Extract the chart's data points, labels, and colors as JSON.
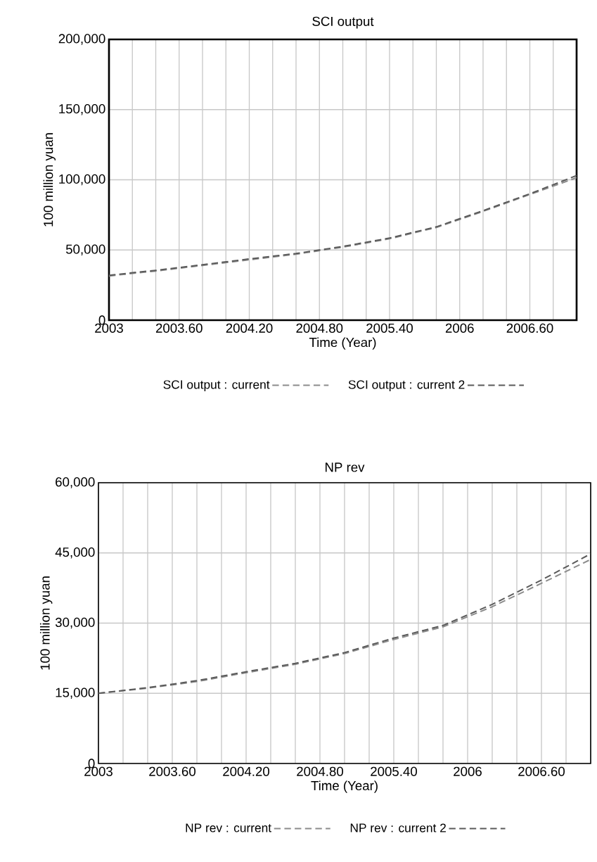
{
  "chart_data": [
    {
      "type": "line",
      "title": "SCI output",
      "xlabel": "Time (Year)",
      "ylabel": "100 million yuan",
      "xlim": [
        2003,
        2007
      ],
      "ylim": [
        0,
        200000
      ],
      "xticks": [
        2003,
        {
          "value": 2003.2,
          "label": null
        },
        {
          "value": 2003.4,
          "label": null
        },
        {
          "value": 2003.6,
          "label": "2003.60"
        },
        {
          "value": 2003.8,
          "label": null
        },
        {
          "value": 2004.0,
          "label": null
        },
        {
          "value": 2004.2,
          "label": "2004.20"
        },
        {
          "value": 2004.4,
          "label": null
        },
        {
          "value": 2004.6,
          "label": null
        },
        {
          "value": 2004.8,
          "label": "2004.80"
        },
        {
          "value": 2005.0,
          "label": null
        },
        {
          "value": 2005.2,
          "label": null
        },
        {
          "value": 2005.4,
          "label": "2005.40"
        },
        {
          "value": 2005.6,
          "label": null
        },
        {
          "value": 2005.8,
          "label": null
        },
        2006,
        {
          "value": 2006.2,
          "label": null
        },
        {
          "value": 2006.4,
          "label": null
        },
        {
          "value": 2006.6,
          "label": "2006.60"
        },
        {
          "value": 2006.8,
          "label": null
        },
        {
          "value": 2007,
          "label": null
        }
      ],
      "yticks": [
        0,
        {
          "value": 50000,
          "label": "50,000"
        },
        {
          "value": 100000,
          "label": "100,000"
        },
        {
          "value": 150000,
          "label": "150,000"
        },
        {
          "value": 200000,
          "label": "200,000"
        }
      ],
      "x": [
        2003,
        2003.4,
        2003.8,
        2004.2,
        2004.6,
        2005.0,
        2005.4,
        2005.8,
        2006.2,
        2006.6,
        2007
      ],
      "series": [
        {
          "name": "SCI output : current",
          "color": "#8c8c8c",
          "values": [
            31500,
            35000,
            39000,
            43000,
            47000,
            52000,
            58000,
            66000,
            77500,
            89500,
            101500
          ]
        },
        {
          "name": "SCI output : current 2",
          "color": "#5a5a5a",
          "values": [
            32000,
            35500,
            39500,
            43600,
            47500,
            52500,
            58500,
            66500,
            78000,
            90000,
            103000
          ]
        }
      ],
      "grid": true,
      "legend": "bottom",
      "line_style": "dashed"
    },
    {
      "type": "line",
      "title": "NP rev",
      "xlabel": "Time (Year)",
      "ylabel": "100 million yuan",
      "xlim": [
        2003,
        2007
      ],
      "ylim": [
        0,
        60000
      ],
      "xticks": [
        2003,
        {
          "value": 2003.2,
          "label": null
        },
        {
          "value": 2003.4,
          "label": null
        },
        {
          "value": 2003.6,
          "label": "2003.60"
        },
        {
          "value": 2003.8,
          "label": null
        },
        {
          "value": 2004.0,
          "label": null
        },
        {
          "value": 2004.2,
          "label": "2004.20"
        },
        {
          "value": 2004.4,
          "label": null
        },
        {
          "value": 2004.6,
          "label": null
        },
        {
          "value": 2004.8,
          "label": "2004.80"
        },
        {
          "value": 2005.0,
          "label": null
        },
        {
          "value": 2005.2,
          "label": null
        },
        {
          "value": 2005.4,
          "label": "2005.40"
        },
        {
          "value": 2005.6,
          "label": null
        },
        {
          "value": 2005.8,
          "label": null
        },
        2006,
        {
          "value": 2006.2,
          "label": null
        },
        {
          "value": 2006.4,
          "label": null
        },
        {
          "value": 2006.6,
          "label": "2006.60"
        },
        {
          "value": 2006.8,
          "label": null
        },
        {
          "value": 2007,
          "label": null
        }
      ],
      "yticks": [
        0,
        {
          "value": 15000,
          "label": "15,000"
        },
        {
          "value": 30000,
          "label": "30,000"
        },
        {
          "value": 45000,
          "label": "45,000"
        },
        {
          "value": 60000,
          "label": "60,000"
        }
      ],
      "x": [
        2003,
        2003.4,
        2003.8,
        2004.2,
        2004.6,
        2005.0,
        2005.4,
        2005.8,
        2006.2,
        2006.6,
        2007
      ],
      "series": [
        {
          "name": "NP rev : current",
          "color": "#8c8c8c",
          "values": [
            15000,
            16100,
            17500,
            19400,
            21200,
            23500,
            26500,
            29200,
            33500,
            38500,
            43600
          ]
        },
        {
          "name": "NP rev : current 2",
          "color": "#5a5a5a",
          "values": [
            15000,
            16200,
            17700,
            19600,
            21400,
            23700,
            26800,
            29500,
            34000,
            39200,
            44800
          ]
        }
      ],
      "grid": true,
      "legend": "bottom",
      "line_style": "dashed"
    }
  ]
}
